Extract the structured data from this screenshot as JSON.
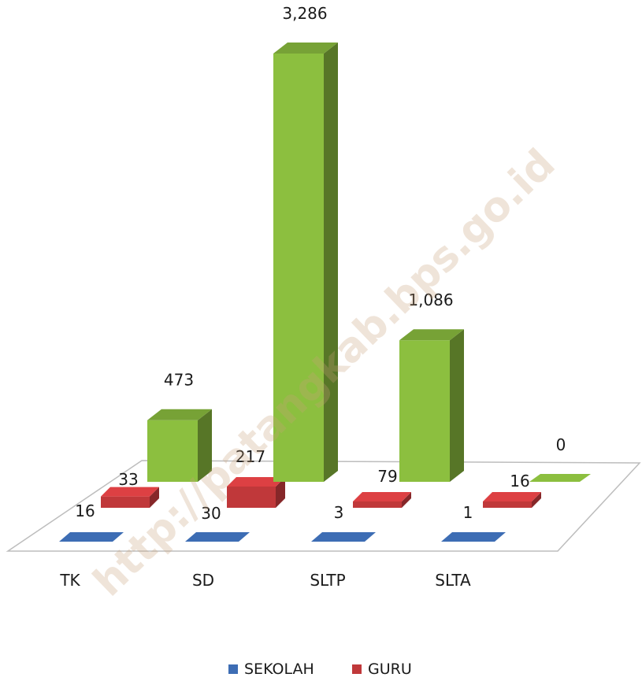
{
  "chart_data": {
    "type": "bar",
    "categories": [
      "TK",
      "SD",
      "SLTP",
      "SLTA"
    ],
    "series": [
      {
        "name": "SEKOLAH",
        "values": [
          null,
          null,
          null,
          null
        ],
        "labels": [
          "",
          "",
          "",
          ""
        ],
        "color": "#3d6db4"
      },
      {
        "name": "GURU",
        "values": [
          16,
          30,
          3,
          1
        ],
        "labels": [
          "16",
          "30",
          "3",
          "1"
        ],
        "color": "#c0383a"
      },
      {
        "name": "",
        "values": [
          473,
          3286,
          1086,
          0
        ],
        "labels": [
          "473",
          "3,286",
          "1,086",
          "0"
        ],
        "color": "#8cbf3f"
      }
    ],
    "depth_labels": [
      "33",
      "217",
      "79",
      "16"
    ],
    "legend": {
      "placement": "bottom",
      "items": [
        "SEKOLAH",
        "GURU"
      ]
    },
    "watermark": "http://patangkab.bps.go.id"
  }
}
